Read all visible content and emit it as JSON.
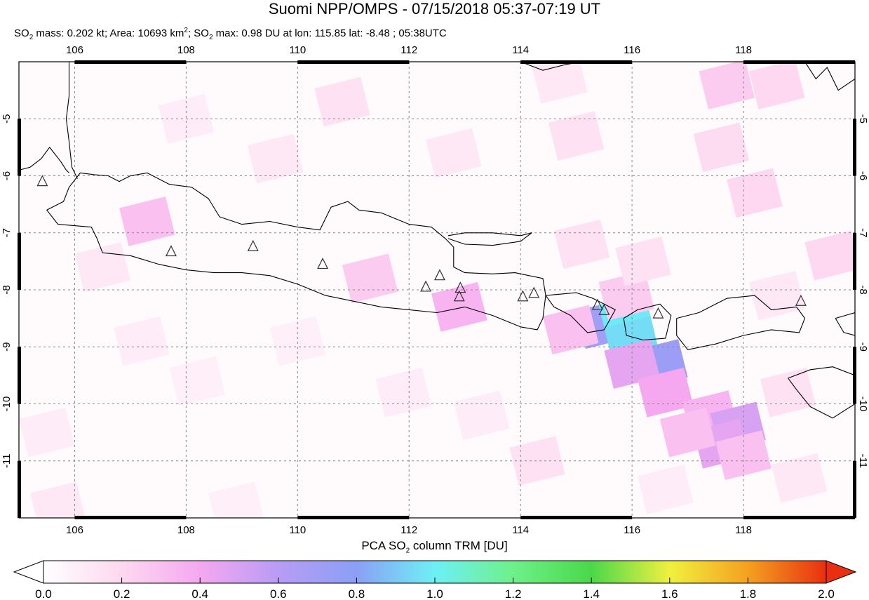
{
  "title": "Suomi NPP/OMPS - 07/15/2018 05:37-07:19 UT",
  "subtitle": {
    "mass_label": "SO",
    "mass_sub": "2",
    "mass_text": " mass: 0.202 kt; Area: 10693 km",
    "area_sup": "2",
    "max_label": "; SO",
    "max_sub": "2",
    "max_text": " max: 0.98 DU at lon: 115.85 lat: -8.48 ; 05:38UTC"
  },
  "lon_ticks": [
    "106",
    "108",
    "110",
    "112",
    "114",
    "116",
    "118"
  ],
  "lat_ticks": [
    "-5",
    "-6",
    "-7",
    "-8",
    "-9",
    "-10",
    "-11"
  ],
  "colorbar": {
    "label_pre": "PCA SO",
    "label_sub": "2",
    "label_post": " column TRM [DU]",
    "ticks": [
      "0.0",
      "0.2",
      "0.4",
      "0.6",
      "0.8",
      "1.0",
      "1.2",
      "1.4",
      "1.6",
      "1.8",
      "2.0"
    ],
    "colors": [
      "#ffffff",
      "#fdd8f0",
      "#f5a8f0",
      "#b89cf5",
      "#8aa0f5",
      "#6df0f5",
      "#6ef08a",
      "#4ad84a",
      "#f0f040",
      "#f5a020",
      "#e83010"
    ]
  },
  "map_extent": {
    "lon_min": 105,
    "lon_max": 120,
    "lat_min": -12,
    "lat_max": -4
  },
  "so2_cells": [
    {
      "lon": 115.5,
      "lat": -8.6,
      "value": 0.7
    },
    {
      "lon": 115.9,
      "lat": -8.5,
      "value": 0.98
    },
    {
      "lon": 116.0,
      "lat": -8.9,
      "value": 0.95
    },
    {
      "lon": 116.5,
      "lat": -9.3,
      "value": 0.72
    },
    {
      "lon": 116.0,
      "lat": -9.3,
      "value": 0.45
    },
    {
      "lon": 116.6,
      "lat": -9.8,
      "value": 0.4
    },
    {
      "lon": 117.4,
      "lat": -10.2,
      "value": 0.35
    },
    {
      "lon": 117.9,
      "lat": -10.4,
      "value": 0.5
    },
    {
      "lon": 117.6,
      "lat": -10.7,
      "value": 0.45
    },
    {
      "lon": 117.0,
      "lat": -10.5,
      "value": 0.3
    },
    {
      "lon": 118.0,
      "lat": -10.9,
      "value": 0.3
    },
    {
      "lon": 112.9,
      "lat": -8.3,
      "value": 0.35
    },
    {
      "lon": 111.3,
      "lat": -7.8,
      "value": 0.25
    },
    {
      "lon": 107.3,
      "lat": -6.8,
      "value": 0.3
    },
    {
      "lon": 114.9,
      "lat": -8.7,
      "value": 0.3
    },
    {
      "lon": 115.9,
      "lat": -8.1,
      "value": 0.25
    },
    {
      "lon": 117.7,
      "lat": -4.4,
      "value": 0.25
    },
    {
      "lon": 118.6,
      "lat": -4.4,
      "value": 0.2
    },
    {
      "lon": 119.6,
      "lat": -7.4,
      "value": 0.2
    },
    {
      "lon": 118.2,
      "lat": -6.3,
      "value": 0.2
    },
    {
      "lon": 117.6,
      "lat": -5.5,
      "value": 0.18
    },
    {
      "lon": 115.1,
      "lat": -7.2,
      "value": 0.15
    },
    {
      "lon": 110.8,
      "lat": -4.7,
      "value": 0.15
    },
    {
      "lon": 109.6,
      "lat": -5.7,
      "value": 0.12
    },
    {
      "lon": 108.0,
      "lat": -5.0,
      "value": 0.1
    },
    {
      "lon": 112.8,
      "lat": -5.6,
      "value": 0.12
    },
    {
      "lon": 106.5,
      "lat": -7.6,
      "value": 0.12
    },
    {
      "lon": 107.2,
      "lat": -8.9,
      "value": 0.1
    },
    {
      "lon": 105.5,
      "lat": -10.5,
      "value": 0.1
    },
    {
      "lon": 113.3,
      "lat": -10.2,
      "value": 0.1
    },
    {
      "lon": 111.9,
      "lat": -9.8,
      "value": 0.1
    },
    {
      "lon": 114.3,
      "lat": -11.0,
      "value": 0.15
    },
    {
      "lon": 116.6,
      "lat": -11.5,
      "value": 0.1
    },
    {
      "lon": 119.0,
      "lat": -11.3,
      "value": 0.12
    },
    {
      "lon": 108.9,
      "lat": -11.8,
      "value": 0.08
    },
    {
      "lon": 105.7,
      "lat": -11.8,
      "value": 0.12
    },
    {
      "lon": 115.0,
      "lat": -5.3,
      "value": 0.15
    },
    {
      "lon": 114.7,
      "lat": -4.3,
      "value": 0.12
    },
    {
      "lon": 118.8,
      "lat": -9.8,
      "value": 0.15
    },
    {
      "lon": 116.2,
      "lat": -7.5,
      "value": 0.15
    },
    {
      "lon": 118.6,
      "lat": -8.1,
      "value": 0.12
    },
    {
      "lon": 110.0,
      "lat": -8.9,
      "value": 0.08
    },
    {
      "lon": 108.2,
      "lat": -9.6,
      "value": 0.08
    }
  ],
  "volcanoes": [
    {
      "lon": 105.42,
      "lat": -6.1
    },
    {
      "lon": 107.73,
      "lat": -7.33
    },
    {
      "lon": 109.2,
      "lat": -7.24
    },
    {
      "lon": 110.45,
      "lat": -7.55
    },
    {
      "lon": 112.3,
      "lat": -7.95
    },
    {
      "lon": 112.55,
      "lat": -7.75
    },
    {
      "lon": 112.92,
      "lat": -7.97
    },
    {
      "lon": 112.9,
      "lat": -8.12
    },
    {
      "lon": 114.04,
      "lat": -8.12
    },
    {
      "lon": 114.24,
      "lat": -8.06
    },
    {
      "lon": 115.38,
      "lat": -8.27
    },
    {
      "lon": 115.5,
      "lat": -8.36
    },
    {
      "lon": 116.47,
      "lat": -8.42
    },
    {
      "lon": 119.03,
      "lat": -8.2
    }
  ],
  "coastlines": {
    "sumatra_sw": [
      [
        105.0,
        -5.9
      ],
      [
        105.2,
        -5.85
      ],
      [
        105.4,
        -5.7
      ],
      [
        105.55,
        -5.5
      ],
      [
        105.75,
        -5.75
      ],
      [
        105.85,
        -5.9
      ],
      [
        105.9,
        -5.95
      ]
    ],
    "sumatra_e": [
      [
        105.9,
        -4.0
      ],
      [
        105.9,
        -4.6
      ],
      [
        105.85,
        -5.0
      ],
      [
        105.9,
        -5.4
      ],
      [
        105.95,
        -5.85
      ],
      [
        106.05,
        -6.05
      ]
    ],
    "java": [
      [
        105.9,
        -6.2
      ],
      [
        106.1,
        -5.95
      ],
      [
        106.35,
        -5.98
      ],
      [
        106.6,
        -6.0
      ],
      [
        106.8,
        -6.1
      ],
      [
        107.0,
        -6.0
      ],
      [
        107.3,
        -5.95
      ],
      [
        107.7,
        -6.15
      ],
      [
        108.1,
        -6.2
      ],
      [
        108.4,
        -6.4
      ],
      [
        108.6,
        -6.72
      ],
      [
        109.0,
        -6.85
      ],
      [
        109.5,
        -6.8
      ],
      [
        110.0,
        -6.9
      ],
      [
        110.4,
        -6.95
      ],
      [
        110.6,
        -6.55
      ],
      [
        110.9,
        -6.45
      ],
      [
        111.1,
        -6.6
      ],
      [
        111.5,
        -6.65
      ],
      [
        112.0,
        -6.85
      ],
      [
        112.4,
        -6.9
      ],
      [
        112.65,
        -7.1
      ],
      [
        112.8,
        -7.25
      ],
      [
        112.8,
        -7.6
      ],
      [
        113.0,
        -7.7
      ],
      [
        113.5,
        -7.72
      ],
      [
        113.9,
        -7.7
      ],
      [
        114.4,
        -7.8
      ],
      [
        114.45,
        -8.1
      ],
      [
        114.4,
        -8.5
      ],
      [
        114.3,
        -8.7
      ],
      [
        114.0,
        -8.65
      ],
      [
        113.5,
        -8.45
      ],
      [
        113.0,
        -8.3
      ],
      [
        112.5,
        -8.4
      ],
      [
        112.0,
        -8.35
      ],
      [
        111.5,
        -8.3
      ],
      [
        111.0,
        -8.2
      ],
      [
        110.5,
        -8.1
      ],
      [
        110.0,
        -7.9
      ],
      [
        109.5,
        -7.75
      ],
      [
        109.0,
        -7.7
      ],
      [
        108.5,
        -7.7
      ],
      [
        108.0,
        -7.65
      ],
      [
        107.5,
        -7.55
      ],
      [
        107.0,
        -7.4
      ],
      [
        106.5,
        -7.35
      ],
      [
        106.4,
        -7.1
      ],
      [
        106.3,
        -6.9
      ],
      [
        105.7,
        -6.85
      ],
      [
        105.5,
        -6.6
      ],
      [
        105.8,
        -6.45
      ],
      [
        105.9,
        -6.2
      ]
    ],
    "madura": [
      [
        112.7,
        -7.05
      ],
      [
        113.0,
        -7.0
      ],
      [
        113.5,
        -7.0
      ],
      [
        114.0,
        -7.05
      ],
      [
        114.2,
        -7.0
      ],
      [
        114.0,
        -7.15
      ],
      [
        113.5,
        -7.22
      ],
      [
        113.0,
        -7.2
      ],
      [
        112.7,
        -7.1
      ]
    ],
    "bali": [
      [
        114.45,
        -8.1
      ],
      [
        115.0,
        -8.05
      ],
      [
        115.3,
        -8.15
      ],
      [
        115.7,
        -8.35
      ],
      [
        115.5,
        -8.7
      ],
      [
        115.2,
        -8.75
      ],
      [
        114.9,
        -8.45
      ],
      [
        114.6,
        -8.3
      ],
      [
        114.45,
        -8.1
      ]
    ],
    "lombok": [
      [
        115.85,
        -8.5
      ],
      [
        116.1,
        -8.35
      ],
      [
        116.5,
        -8.25
      ],
      [
        116.7,
        -8.45
      ],
      [
        116.6,
        -8.85
      ],
      [
        116.2,
        -8.88
      ],
      [
        115.9,
        -8.8
      ],
      [
        115.85,
        -8.5
      ]
    ],
    "sumbawa": [
      [
        116.8,
        -8.5
      ],
      [
        117.2,
        -8.4
      ],
      [
        117.7,
        -8.15
      ],
      [
        118.2,
        -8.1
      ],
      [
        118.5,
        -8.35
      ],
      [
        118.95,
        -8.3
      ],
      [
        119.1,
        -8.5
      ],
      [
        119.0,
        -8.75
      ],
      [
        118.5,
        -8.7
      ],
      [
        118.0,
        -8.8
      ],
      [
        117.5,
        -8.95
      ],
      [
        117.0,
        -9.05
      ],
      [
        116.8,
        -8.8
      ],
      [
        116.8,
        -8.5
      ]
    ],
    "sumba": [
      [
        118.8,
        -9.55
      ],
      [
        119.2,
        -9.4
      ],
      [
        119.6,
        -9.35
      ],
      [
        120.0,
        -9.5
      ],
      [
        120.0,
        -10.0
      ],
      [
        119.6,
        -10.25
      ],
      [
        119.2,
        -10.05
      ],
      [
        118.95,
        -9.75
      ],
      [
        118.8,
        -9.55
      ]
    ],
    "flores": [
      [
        119.65,
        -8.5
      ],
      [
        120.0,
        -8.4
      ],
      [
        120.0,
        -8.8
      ],
      [
        119.8,
        -8.75
      ],
      [
        119.65,
        -8.5
      ]
    ],
    "sulawesi": [
      [
        119.1,
        -4.0
      ],
      [
        119.3,
        -4.3
      ],
      [
        119.5,
        -4.1
      ],
      [
        119.7,
        -4.5
      ],
      [
        120.0,
        -4.3
      ]
    ],
    "borneo": [
      [
        114.0,
        -4.0
      ],
      [
        114.4,
        -4.15
      ],
      [
        114.8,
        -4.05
      ],
      [
        115.1,
        -4.0
      ]
    ]
  }
}
